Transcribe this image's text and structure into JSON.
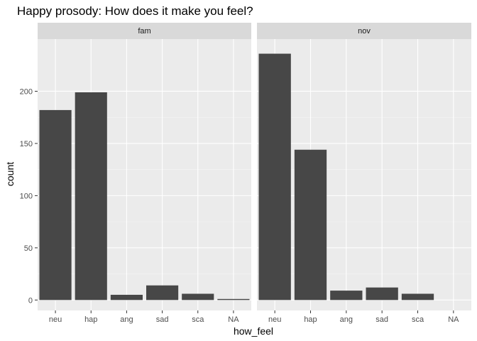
{
  "chart_data": {
    "type": "bar",
    "title": "Happy prosody: How does it make you feel?",
    "xlabel": "how_feel",
    "ylabel": "count",
    "categories": [
      "neu",
      "hap",
      "ang",
      "sad",
      "sca",
      "NA"
    ],
    "ylim": [
      -10,
      250
    ],
    "yticks": [
      0,
      50,
      100,
      150,
      200
    ],
    "grid": true,
    "bar_color": "#474747",
    "panel_bg": "#ebebeb",
    "strip_bg": "#d9d9d9",
    "facets": [
      {
        "label": "fam",
        "values": [
          182,
          199,
          5,
          14,
          6,
          1
        ]
      },
      {
        "label": "nov",
        "values": [
          236,
          144,
          9,
          12,
          6,
          0
        ]
      }
    ]
  }
}
